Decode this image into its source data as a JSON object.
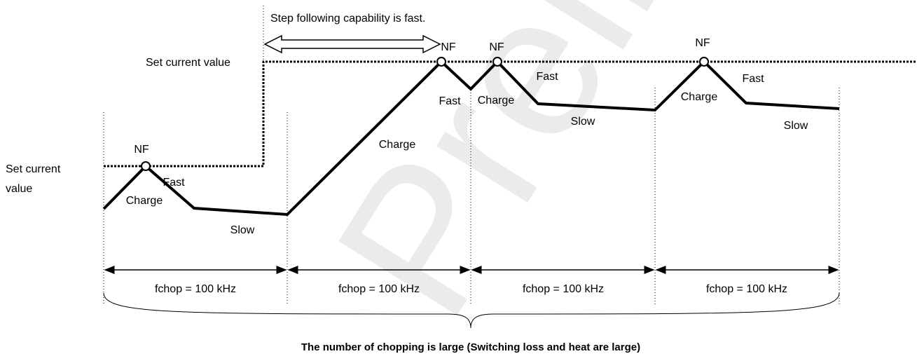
{
  "watermark": "Preliminary",
  "annotation": "Step following capability is fast.",
  "set_current_labels": [
    "Set current value",
    "Set current",
    "value"
  ],
  "nf_labels": [
    "NF",
    "NF",
    "NF",
    "NF"
  ],
  "charge_labels": [
    "Charge",
    "Charge",
    "Charge",
    "Charge"
  ],
  "fast_labels": [
    "Fast",
    "Fast",
    "Fast",
    "Fast"
  ],
  "slow_labels": [
    "Slow",
    "Slow",
    "Slow"
  ],
  "frequency_labels": [
    "fchop = 100 kHz",
    "fchop = 100 kHz",
    "fchop = 100 kHz",
    "fchop = 100 kHz"
  ],
  "caption": "The number of chopping is large (Switching loss and heat are large)"
}
